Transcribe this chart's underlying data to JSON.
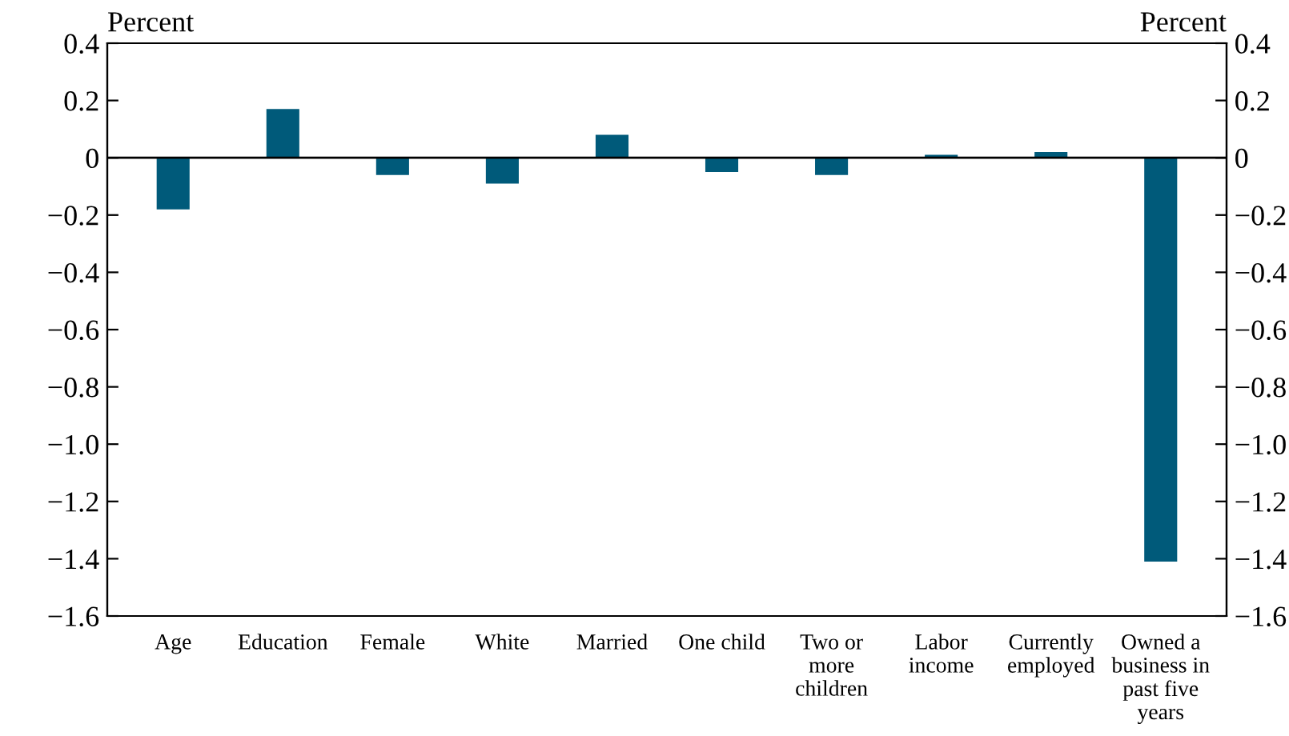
{
  "chart_data": {
    "type": "bar",
    "ylabel": "Percent",
    "y2label": "Percent",
    "categories": [
      "Age",
      "Education",
      "Female",
      "White",
      "Married",
      "One child",
      "Two or\nmore\nchildren",
      "Labor\nincome",
      "Currently\nemployed",
      "Owned a\nbusiness in\npast five\nyears"
    ],
    "values": [
      -0.18,
      0.17,
      -0.06,
      -0.09,
      0.08,
      -0.05,
      -0.06,
      0.01,
      0.02,
      -1.41
    ],
    "color": "#005a7a",
    "ylim": [
      -1.6,
      0.4
    ],
    "yticks": [
      0.4,
      0.2,
      0,
      {
        "value": -0.2,
        "label": "−0.2"
      },
      {
        "value": -0.4,
        "label": "−0.4"
      },
      {
        "value": -0.6,
        "label": "−0.6"
      },
      {
        "value": -0.8,
        "label": "−0.8"
      },
      {
        "value": -1,
        "label": "−1.0"
      },
      {
        "value": -1.2,
        "label": "−1.2"
      },
      {
        "value": -1.4,
        "label": "−1.4"
      },
      {
        "value": -1.6,
        "label": "−1.6"
      }
    ],
    "y2lim": [
      -1.6,
      0.4
    ],
    "y2ticks": [
      0.4,
      0.2,
      0,
      {
        "value": -0.2,
        "label": "−0.2"
      },
      {
        "value": -0.4,
        "label": "−0.4"
      },
      {
        "value": -0.6,
        "label": "−0.6"
      },
      {
        "value": -0.8,
        "label": "−0.8"
      },
      {
        "value": -1,
        "label": "−1.0"
      },
      {
        "value": -1.2,
        "label": "−1.2"
      },
      {
        "value": -1.4,
        "label": "−1.4"
      },
      {
        "value": -1.6,
        "label": "−1.6"
      }
    ],
    "ref_lines": [
      {
        "axis": "y",
        "value": 0,
        "color": "#000000"
      }
    ],
    "grid": false,
    "legend": false
  }
}
